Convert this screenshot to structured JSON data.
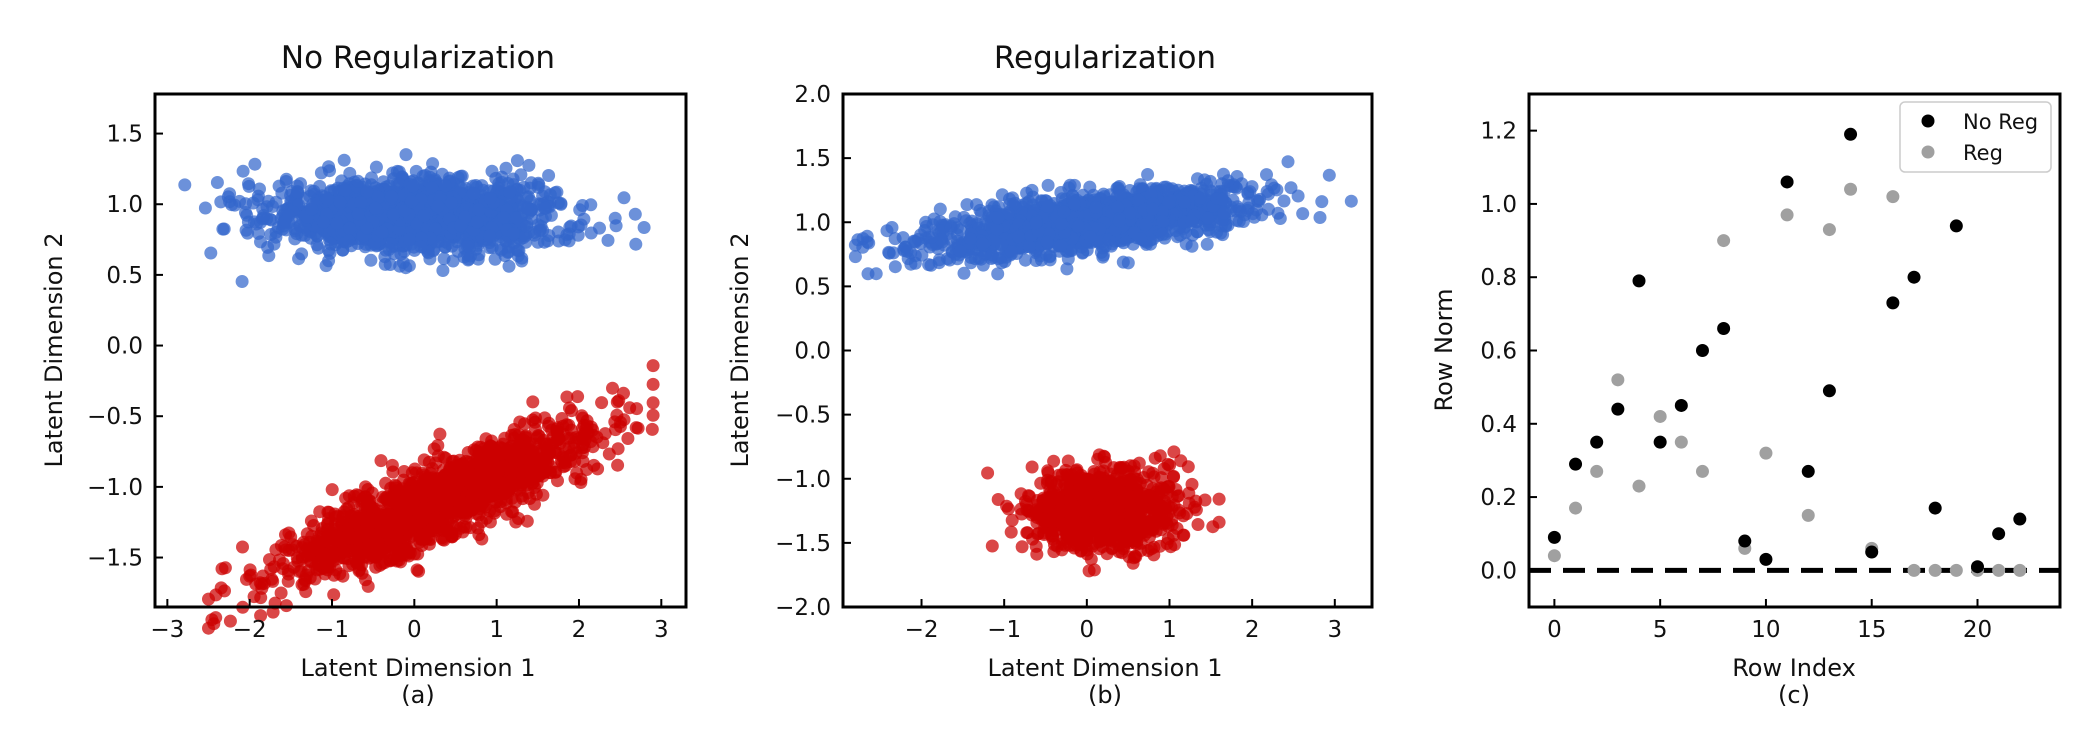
{
  "chart_data": [
    {
      "type": "scatter",
      "title": "No Regularization",
      "xlabel": "Latent Dimension 1",
      "ylabel": "Latent Dimension 2",
      "caption": "(a)",
      "xlim": [
        -3.15,
        3.3
      ],
      "ylim": [
        -1.85,
        1.78
      ],
      "xticks": [
        -3,
        -2,
        -1,
        0,
        1,
        2,
        3
      ],
      "yticks": [
        -1.5,
        -1.0,
        -0.5,
        0.0,
        0.5,
        1.0,
        1.5
      ],
      "series": [
        {
          "color": "#3366cc",
          "cluster": {
            "x_range": [
              -2.9,
              3.0
            ],
            "x_center": 0.0,
            "x_spread": 0.85,
            "y_center": 0.92,
            "slope": 0.0,
            "y_spread": 0.13,
            "count": 1600
          }
        },
        {
          "color": "#cc0000",
          "cluster": {
            "x_range": [
              -2.5,
              2.9
            ],
            "x_center": 0.3,
            "x_spread": 0.95,
            "y_center": -1.1,
            "slope": 0.25,
            "y_spread": 0.14,
            "count": 1600
          }
        }
      ]
    },
    {
      "type": "scatter",
      "title": "Regularization",
      "xlabel": "Latent Dimension 1",
      "ylabel": "Latent Dimension 2",
      "caption": "(b)",
      "xlim": [
        -2.95,
        3.45
      ],
      "ylim": [
        -2.0,
        2.0
      ],
      "xticks": [
        -2,
        -1,
        0,
        1,
        2,
        3
      ],
      "yticks": [
        -2.0,
        -1.5,
        -1.0,
        -0.5,
        0.0,
        0.5,
        1.0,
        1.5,
        2.0
      ],
      "series": [
        {
          "color": "#3366cc",
          "cluster": {
            "x_range": [
              -2.8,
              3.2
            ],
            "x_center": 0.0,
            "x_spread": 0.95,
            "y_center": 1.0,
            "slope": 0.08,
            "y_spread": 0.11,
            "count": 1600
          }
        },
        {
          "color": "#cc0000",
          "cluster": {
            "x_range": [
              -1.2,
              1.6
            ],
            "x_center": 0.2,
            "x_spread": 0.42,
            "y_center": -1.25,
            "slope": 0.0,
            "y_spread": 0.15,
            "count": 1100
          }
        }
      ]
    },
    {
      "type": "scatter",
      "xlabel": "Row Index",
      "ylabel": "Row Norm",
      "caption": "(c)",
      "xlim": [
        -1.2,
        23.9
      ],
      "ylim": [
        -0.1,
        1.3
      ],
      "xticks": [
        0,
        5,
        10,
        15,
        20
      ],
      "yticks": [
        0.0,
        0.2,
        0.4,
        0.6,
        0.8,
        1.0,
        1.2
      ],
      "zero_line": true,
      "legend": "top-right",
      "x": [
        0,
        1,
        2,
        3,
        4,
        5,
        6,
        7,
        8,
        9,
        10,
        11,
        12,
        13,
        14,
        15,
        16,
        17,
        18,
        19,
        20,
        21,
        22
      ],
      "series": [
        {
          "name": "No Reg",
          "color": "#000000",
          "values": [
            0.09,
            0.29,
            0.35,
            0.44,
            0.79,
            0.35,
            0.45,
            0.6,
            0.66,
            0.08,
            0.03,
            1.06,
            0.27,
            0.49,
            1.19,
            0.05,
            0.73,
            0.8,
            0.17,
            0.94,
            0.01,
            0.1,
            0.14
          ]
        },
        {
          "name": "Reg",
          "color": "#a0a0a0",
          "values": [
            0.04,
            0.17,
            0.27,
            0.52,
            0.23,
            0.42,
            0.35,
            0.27,
            0.9,
            0.06,
            0.32,
            0.97,
            0.15,
            0.93,
            1.04,
            0.06,
            1.02,
            0.0,
            0.0,
            0.0,
            0.0,
            0.0,
            0.0
          ]
        }
      ]
    }
  ]
}
